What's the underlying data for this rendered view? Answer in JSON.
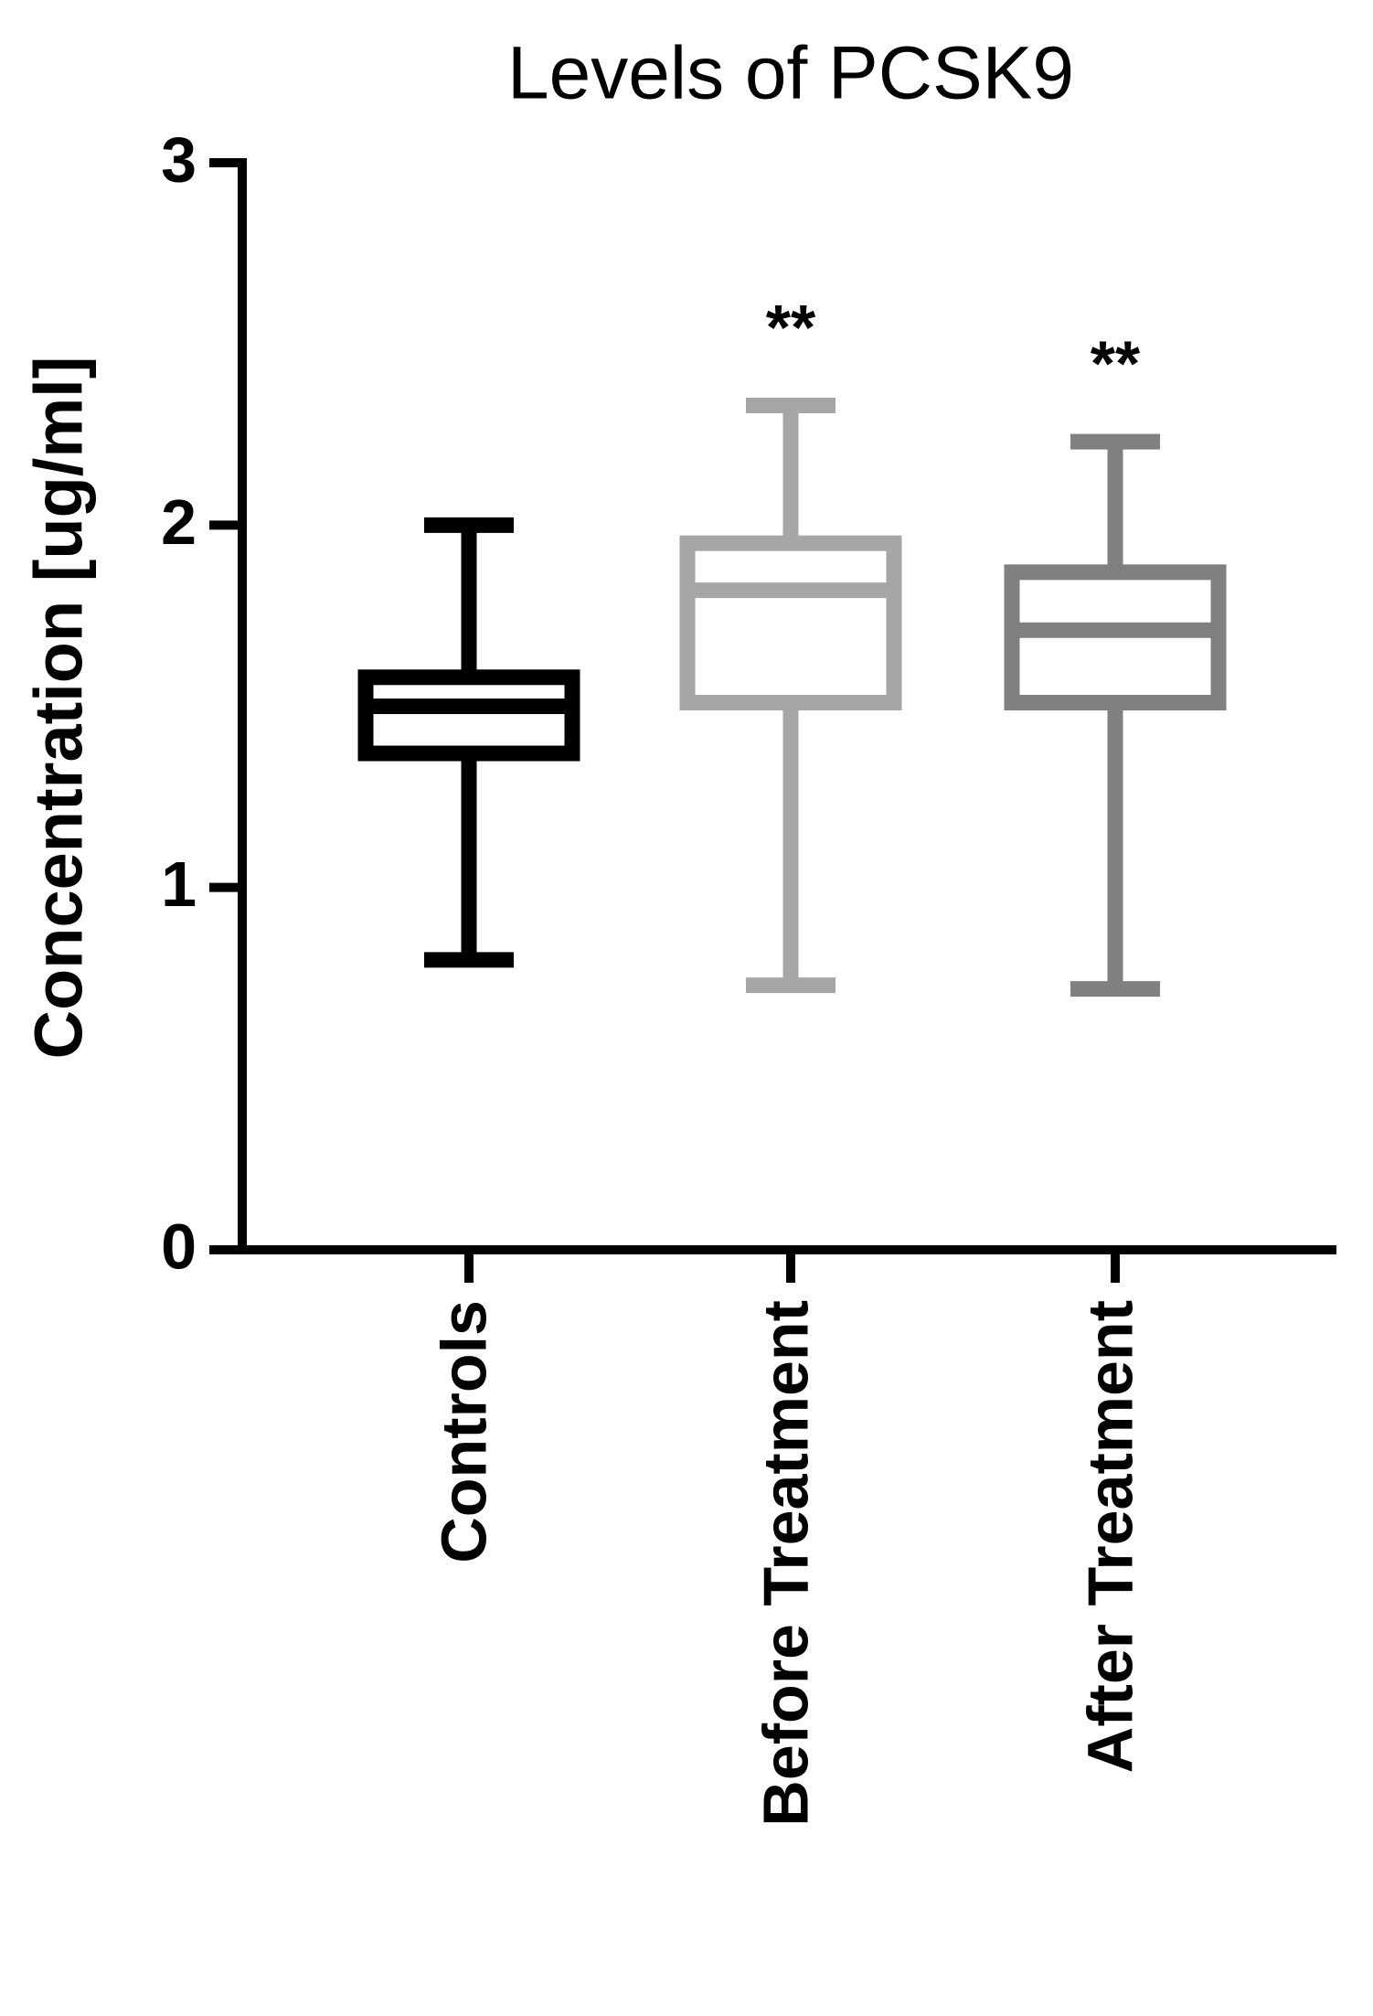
{
  "chart_data": {
    "type": "box",
    "title": "Levels of PCSK9",
    "y_label": "Concentration [ug/ml]",
    "categories": [
      "Controls",
      "Before Treatment",
      "After Treatment"
    ],
    "boxes": [
      {
        "min": 0.8,
        "q1": 1.37,
        "median": 1.5,
        "q3": 1.58,
        "max": 2.0,
        "color": "#000000"
      },
      {
        "min": 0.73,
        "q1": 1.51,
        "median": 1.82,
        "q3": 1.95,
        "max": 2.33,
        "color": "#a6a6a6"
      },
      {
        "min": 0.72,
        "q1": 1.51,
        "median": 1.71,
        "q3": 1.87,
        "max": 2.23,
        "color": "#808080"
      }
    ],
    "significance": [
      null,
      "**",
      "**"
    ],
    "ylim": [
      0,
      3
    ],
    "yticks": [
      0,
      1,
      2,
      3
    ]
  }
}
